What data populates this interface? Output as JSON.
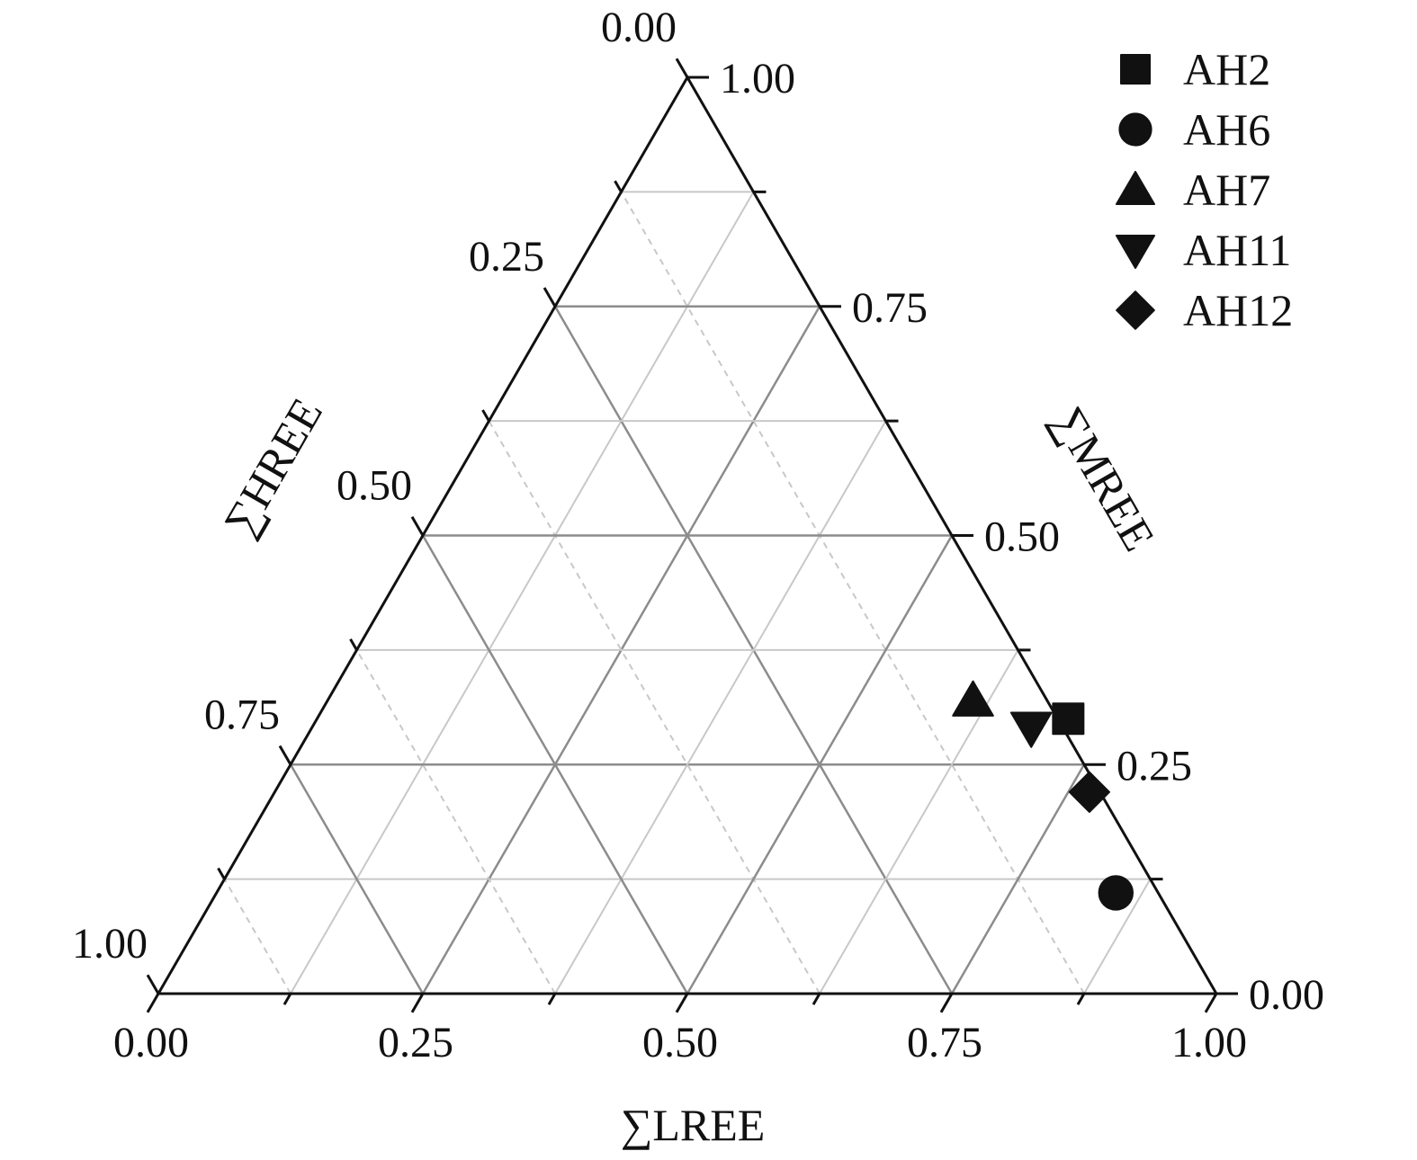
{
  "chart_data": {
    "type": "scatter",
    "subtype": "ternary",
    "axes": {
      "lree": {
        "label": "∑LREE",
        "ticks": [
          "0.00",
          "0.25",
          "0.50",
          "0.75",
          "1.00"
        ],
        "range": [
          0,
          1
        ]
      },
      "mree": {
        "label": "∑MREE",
        "ticks": [
          "0.00",
          "0.25",
          "0.50",
          "0.75",
          "1.00"
        ],
        "range": [
          0,
          1
        ]
      },
      "hree": {
        "label": "∑HREE",
        "ticks": [
          "0.00",
          "0.25",
          "0.50",
          "0.75",
          "1.00"
        ],
        "range": [
          0,
          1
        ]
      }
    },
    "grid": true,
    "legend_position": "top-right",
    "series": [
      {
        "name": "AH2",
        "marker": "square",
        "points": [
          {
            "lree": 0.71,
            "mree": 0.3,
            "hree": -0.01
          }
        ]
      },
      {
        "name": "AH6",
        "marker": "circle",
        "points": [
          {
            "lree": 0.85,
            "mree": 0.11,
            "hree": 0.04
          }
        ]
      },
      {
        "name": "AH7",
        "marker": "triangle-up",
        "points": [
          {
            "lree": 0.61,
            "mree": 0.32,
            "hree": 0.07
          }
        ]
      },
      {
        "name": "AH11",
        "marker": "triangle-down",
        "points": [
          {
            "lree": 0.68,
            "mree": 0.29,
            "hree": 0.03
          }
        ]
      },
      {
        "name": "AH12",
        "marker": "diamond",
        "points": [
          {
            "lree": 0.77,
            "mree": 0.22,
            "hree": 0.01
          }
        ]
      }
    ]
  },
  "colors": {
    "frame": "#111111",
    "major_grid": "#8c8c8c",
    "minor_grid": "#c8c8c8",
    "marker": "#111111"
  }
}
